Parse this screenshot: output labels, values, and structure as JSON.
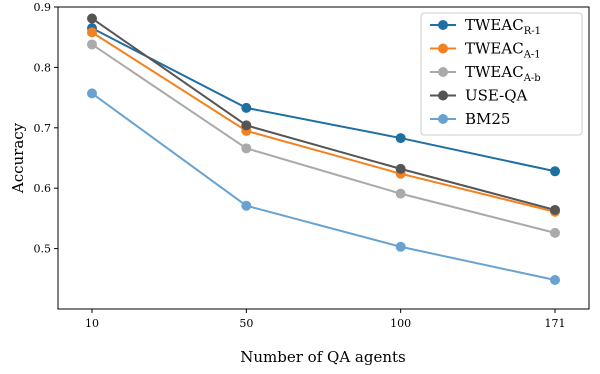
{
  "chart_data": {
    "type": "line",
    "title": "",
    "xlabel": "Number of QA agents",
    "ylabel": "Accuracy",
    "x": [
      "10",
      "50",
      "100",
      "171"
    ],
    "ylim": [
      0.4,
      0.9
    ],
    "yticks": [
      "0.5",
      "0.6",
      "0.7",
      "0.8",
      "0.9"
    ],
    "grid": false,
    "legend_position": "top-right",
    "series": [
      {
        "name": "TWEAC",
        "subscript": "R-1",
        "color": "#1f6fa3",
        "values": [
          0.865,
          0.733,
          0.683,
          0.628
        ]
      },
      {
        "name": "TWEAC",
        "subscript": "A-1",
        "color": "#f4811f",
        "values": [
          0.858,
          0.695,
          0.624,
          0.561
        ]
      },
      {
        "name": "TWEAC",
        "subscript": "A-b",
        "color": "#aaaaaa",
        "values": [
          0.838,
          0.666,
          0.591,
          0.526
        ]
      },
      {
        "name": "USE-QA",
        "subscript": "",
        "color": "#555555",
        "values": [
          0.881,
          0.704,
          0.632,
          0.564
        ]
      },
      {
        "name": "BM25",
        "subscript": "",
        "color": "#69a2d0",
        "values": [
          0.757,
          0.571,
          0.503,
          0.448
        ]
      }
    ]
  }
}
